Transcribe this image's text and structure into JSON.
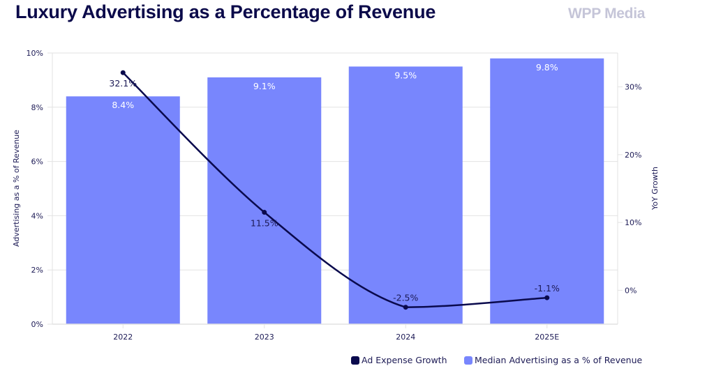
{
  "header": {
    "title": "Luxury Advertising as a Percentage of Revenue",
    "brand": "WPP Media"
  },
  "colors": {
    "bar": "#7886fd",
    "line": "#0a0a4d",
    "grid": "#e2e2e2",
    "text": "#1c1a55"
  },
  "chart_data": {
    "type": "bar",
    "title": "Luxury Advertising as a Percentage of Revenue",
    "categories": [
      "2022",
      "2023",
      "2024",
      "2025E"
    ],
    "series": [
      {
        "name": "Median Advertising as a % of Revenue",
        "type": "bar",
        "axis": "left",
        "values": [
          8.4,
          9.1,
          9.5,
          9.8
        ],
        "labels": [
          "8.4%",
          "9.1%",
          "9.5%",
          "9.8%"
        ]
      },
      {
        "name": "Ad Expense Growth",
        "type": "line",
        "axis": "right",
        "values": [
          32.1,
          11.5,
          -2.5,
          -1.1
        ],
        "labels": [
          "32.1%",
          "11.5%",
          "-2.5%",
          "-1.1%"
        ]
      }
    ],
    "xlabel": "",
    "ylabel": "Advertising as a % of Revenue",
    "y2label": "YoY Growth",
    "ylim": [
      0,
      10
    ],
    "y2lim": [
      -5,
      35
    ],
    "yticks": [
      0,
      2,
      4,
      6,
      8,
      10
    ],
    "ytick_labels": [
      "0%",
      "2%",
      "4%",
      "6%",
      "8%",
      "10%"
    ],
    "y2ticks": [
      0,
      10,
      20,
      30
    ],
    "y2tick_labels": [
      "0%",
      "10%",
      "20%",
      "30%"
    ],
    "grid": true,
    "legend_position": "bottom-right",
    "legend": [
      "Ad Expense Growth",
      "Median Advertising as a % of Revenue"
    ]
  }
}
